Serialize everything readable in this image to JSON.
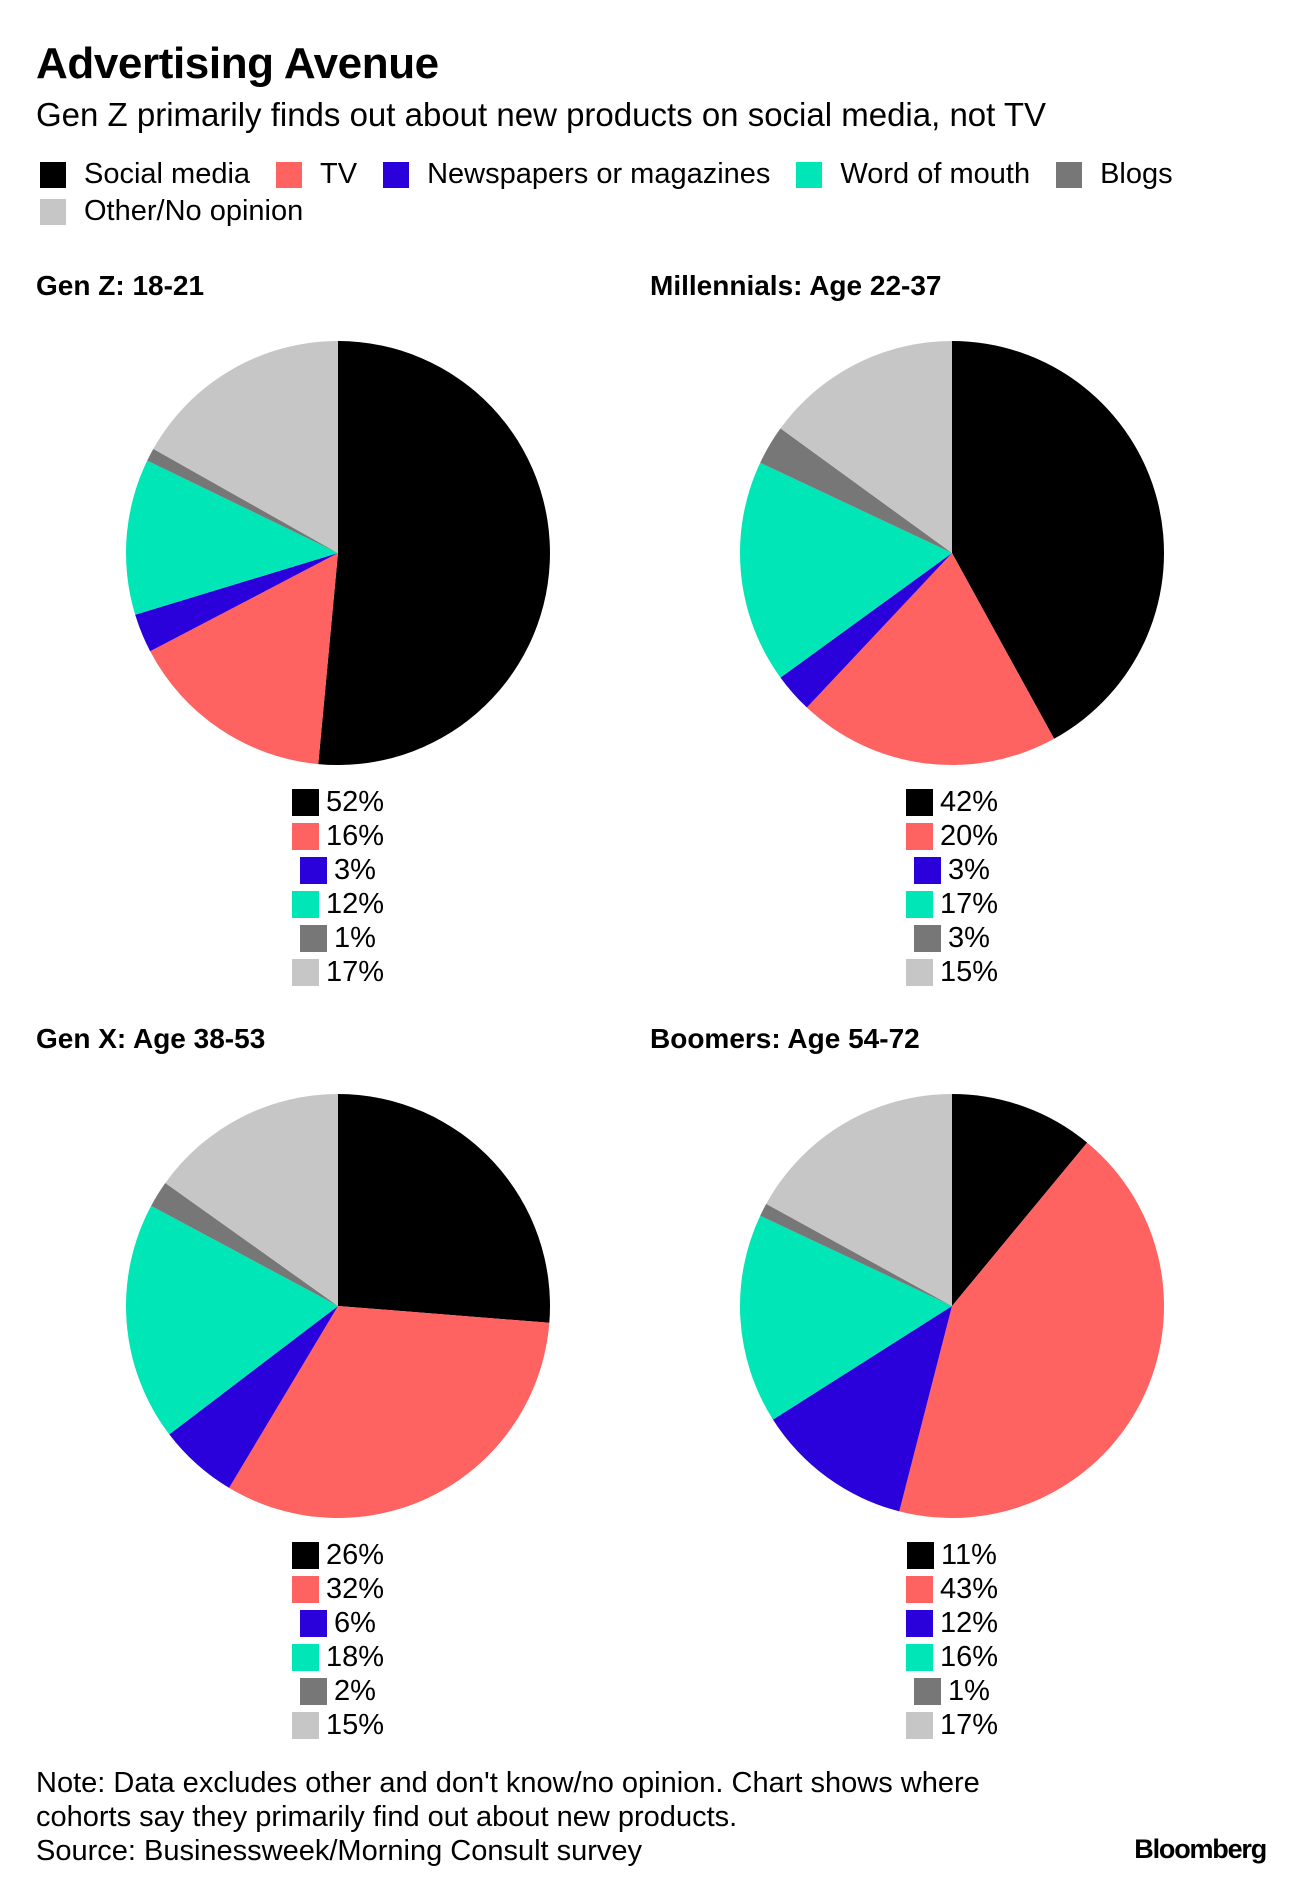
{
  "header": {
    "title": "Advertising Avenue",
    "subtitle": "Gen Z primarily finds out about new products on social media, not TV"
  },
  "legend": [
    {
      "label": "Social media",
      "color": "#000000"
    },
    {
      "label": "TV",
      "color": "#ff6361"
    },
    {
      "label": "Newspapers or magazines",
      "color": "#2a00db"
    },
    {
      "label": "Word of mouth",
      "color": "#00e6b6"
    },
    {
      "label": "Blogs",
      "color": "#777777"
    },
    {
      "label": "Other/No opinion",
      "color": "#c6c6c6"
    }
  ],
  "chart_data": [
    {
      "type": "pie",
      "title": "Gen Z: 18-21",
      "categories": [
        "Social media",
        "TV",
        "Newspapers or magazines",
        "Word of mouth",
        "Blogs",
        "Other/No opinion"
      ],
      "values": [
        52,
        16,
        3,
        12,
        1,
        17
      ],
      "value_labels": [
        "52%",
        "16%",
        "3%",
        "12%",
        "1%",
        "17%"
      ]
    },
    {
      "type": "pie",
      "title": "Millennials: Age 22-37",
      "categories": [
        "Social media",
        "TV",
        "Newspapers or magazines",
        "Word of mouth",
        "Blogs",
        "Other/No opinion"
      ],
      "values": [
        42,
        20,
        3,
        17,
        3,
        15
      ],
      "value_labels": [
        "42%",
        "20%",
        "3%",
        "17%",
        "3%",
        "15%"
      ]
    },
    {
      "type": "pie",
      "title": "Gen X: Age 38-53",
      "categories": [
        "Social media",
        "TV",
        "Newspapers or magazines",
        "Word of mouth",
        "Blogs",
        "Other/No opinion"
      ],
      "values": [
        26,
        32,
        6,
        18,
        2,
        15
      ],
      "value_labels": [
        "26%",
        "32%",
        "6%",
        "18%",
        "2%",
        "15%"
      ]
    },
    {
      "type": "pie",
      "title": "Boomers: Age 54-72",
      "categories": [
        "Social media",
        "TV",
        "Newspapers or magazines",
        "Word of mouth",
        "Blogs",
        "Other/No opinion"
      ],
      "values": [
        11,
        43,
        12,
        16,
        1,
        17
      ],
      "value_labels": [
        "11%",
        "43%",
        "12%",
        "16%",
        "1%",
        "17%"
      ]
    }
  ],
  "footer": {
    "note_lines": [
      "Note: Data excludes other and don't know/no opinion. Chart shows where",
      "cohorts say they primarily find out about new products."
    ],
    "source": "Source: Businessweek/Morning Consult survey",
    "logo": "Bloomberg"
  }
}
